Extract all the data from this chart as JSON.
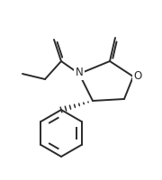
{
  "bg_color": "#ffffff",
  "line_color": "#2a2a2a",
  "label_color": "#2a2a2a",
  "fig_width": 1.8,
  "fig_height": 2.0,
  "dpi": 100,
  "lw": 1.4,
  "label_fontsize": 8.5
}
